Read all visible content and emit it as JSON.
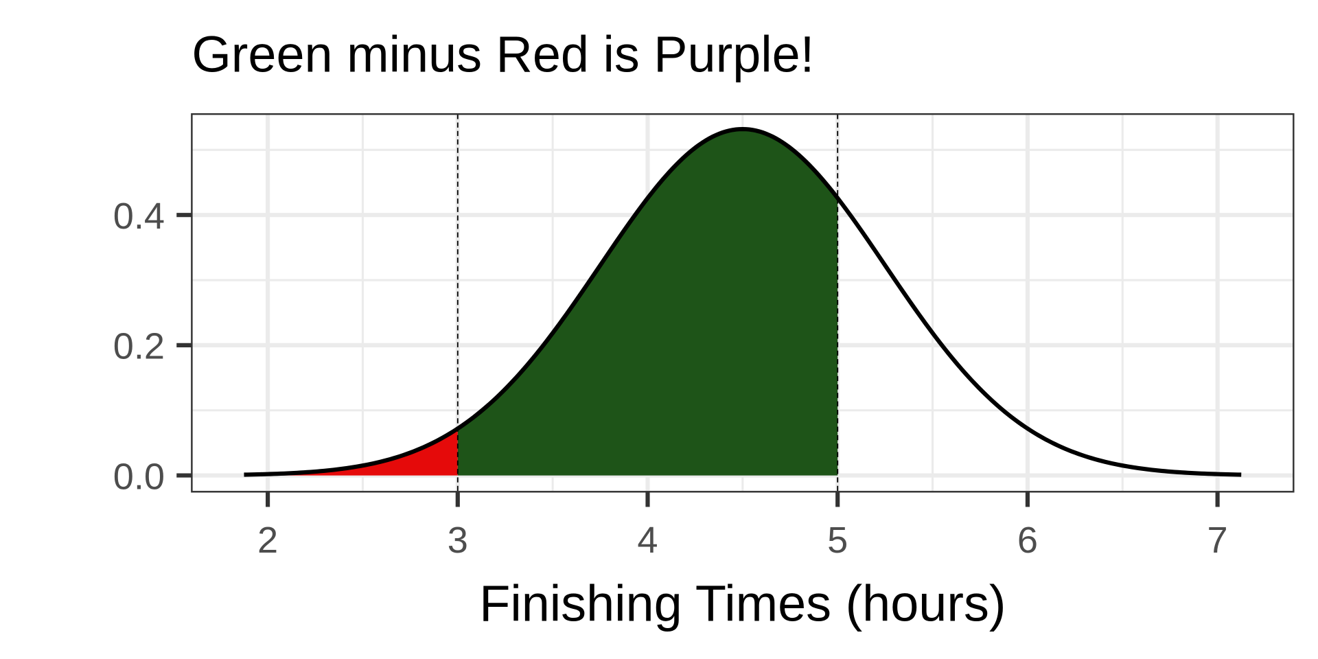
{
  "chart_data": {
    "type": "area",
    "title": "Green minus Red is Purple!",
    "xlabel": "Finishing Times (hours)",
    "ylabel": "",
    "xlim": [
      1.6,
      7.4
    ],
    "ylim": [
      -0.025,
      0.555
    ],
    "x_ticks": [
      "2",
      "3",
      "4",
      "5",
      "6",
      "7"
    ],
    "y_ticks": [
      "0.0",
      "0.2",
      "0.4"
    ],
    "grid": true,
    "curve": {
      "distribution": "normal",
      "mean": 4.5,
      "sd": 0.75,
      "x_range": [
        1.875,
        7.125
      ]
    },
    "shaded_regions": [
      {
        "from": 1.875,
        "to": 3,
        "color": "#E50A0A"
      },
      {
        "from": 3,
        "to": 5,
        "color": "#1E5418"
      }
    ],
    "reference_lines": [
      3,
      5
    ]
  }
}
